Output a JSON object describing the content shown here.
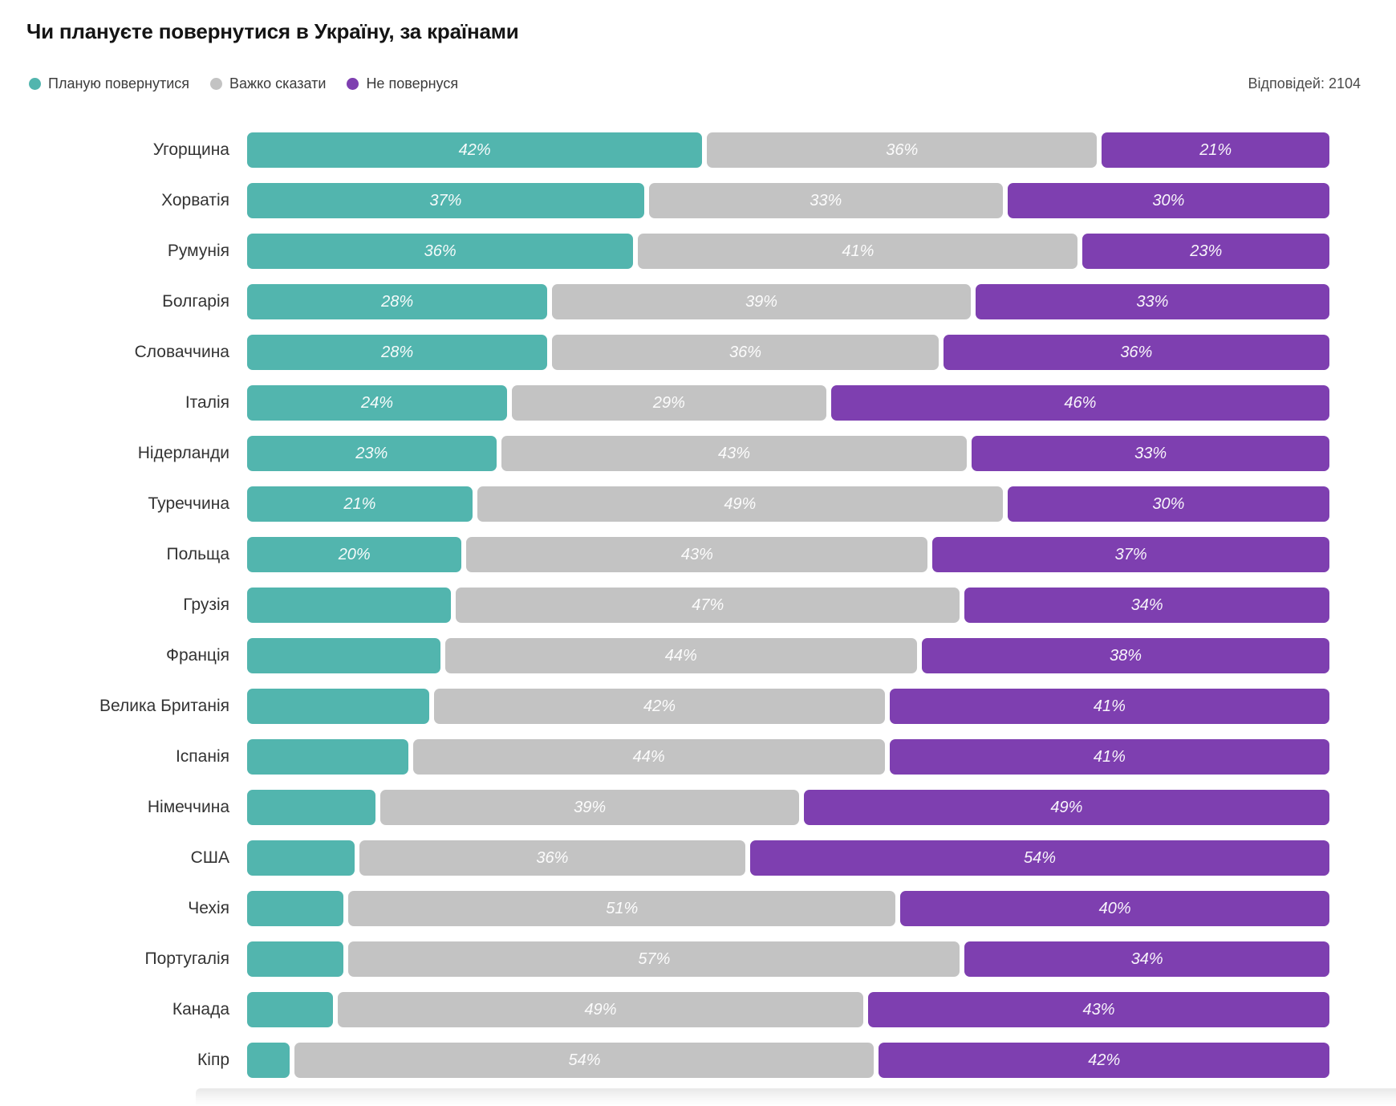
{
  "title": "Чи плануєте повернутися в Україну, за країнами",
  "responses_label": "Відповідей: 2104",
  "colors": {
    "plan_return": "#52b5ae",
    "hard_to_say": "#c3c3c3",
    "wont_return": "#7e3fb0"
  },
  "legend": [
    {
      "label": "Планую повернутися",
      "color": "#52b5ae"
    },
    {
      "label": "Важко сказати",
      "color": "#c3c3c3"
    },
    {
      "label": "Не повернуся",
      "color": "#7e3fb0"
    }
  ],
  "chart_data": {
    "type": "bar",
    "orientation": "horizontal",
    "stacked": true,
    "value_unit": "percent",
    "title": "Чи плануєте повернутися в Україну, за країнами",
    "legend_position": "top-left",
    "responses_total": 2104,
    "categories": [
      "Угорщина",
      "Хорватія",
      "Румунія",
      "Болгарія",
      "Словаччина",
      "Італія",
      "Нідерланди",
      "Туреччина",
      "Польща",
      "Грузія",
      "Франція",
      "Велика Британія",
      "Іспанія",
      "Німеччина",
      "США",
      "Чехія",
      "Португалія",
      "Канада",
      "Кіпр"
    ],
    "series": [
      {
        "name": "Планую повернутися",
        "color": "#52b5ae",
        "values": [
          42,
          37,
          36,
          28,
          28,
          24,
          23,
          21,
          20,
          19,
          18,
          17,
          15,
          12,
          10,
          9,
          9,
          8,
          4
        ],
        "labels": [
          "42%",
          "37%",
          "36%",
          "28%",
          "28%",
          "24%",
          "23%",
          "21%",
          "20%",
          "",
          "",
          "",
          "",
          "",
          "",
          "",
          "",
          "",
          ""
        ]
      },
      {
        "name": "Важко сказати",
        "color": "#c3c3c3",
        "values": [
          36,
          33,
          41,
          39,
          36,
          29,
          43,
          49,
          43,
          47,
          44,
          42,
          44,
          39,
          36,
          51,
          57,
          49,
          54
        ],
        "labels": [
          "36%",
          "33%",
          "41%",
          "39%",
          "36%",
          "29%",
          "43%",
          "49%",
          "43%",
          "47%",
          "44%",
          "42%",
          "44%",
          "39%",
          "36%",
          "51%",
          "57%",
          "49%",
          "54%"
        ]
      },
      {
        "name": "Не повернуся",
        "color": "#7e3fb0",
        "values": [
          21,
          30,
          23,
          33,
          36,
          46,
          33,
          30,
          37,
          34,
          38,
          41,
          41,
          49,
          54,
          40,
          34,
          43,
          42
        ],
        "labels": [
          "21%",
          "30%",
          "23%",
          "33%",
          "36%",
          "46%",
          "33%",
          "30%",
          "37%",
          "34%",
          "38%",
          "41%",
          "41%",
          "49%",
          "54%",
          "40%",
          "34%",
          "43%",
          "42%"
        ]
      }
    ]
  }
}
